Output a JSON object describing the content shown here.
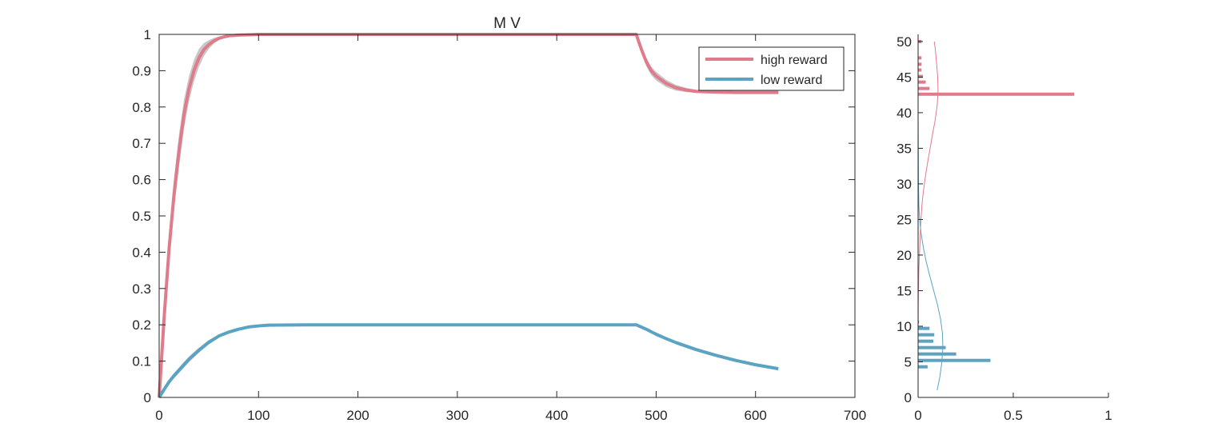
{
  "chart_data": [
    {
      "type": "line",
      "title": "M  V",
      "xlabel": "",
      "ylabel": "",
      "xlim": [
        0,
        700
      ],
      "ylim": [
        0,
        1
      ],
      "xticks": [
        0,
        100,
        200,
        300,
        400,
        500,
        600,
        700
      ],
      "yticks": [
        0,
        0.1,
        0.2,
        0.3,
        0.4,
        0.5,
        0.6,
        0.7,
        0.8,
        0.9,
        1
      ],
      "ytick_labels": [
        "0",
        "0.1",
        "0.2",
        "0.3",
        "0.4",
        "0.5",
        "0.6",
        "0.7",
        "0.8",
        "0.9",
        "1"
      ],
      "grid": false,
      "legend": {
        "placement": "top-right",
        "entries": [
          "high reward",
          "low reward"
        ]
      },
      "series": [
        {
          "name": "high reward",
          "color": "#E07B8B",
          "band_color": "#C8C8C8",
          "x": [
            0,
            5,
            10,
            15,
            20,
            25,
            30,
            35,
            40,
            45,
            50,
            55,
            60,
            65,
            70,
            80,
            90,
            100,
            150,
            200,
            300,
            400,
            480,
            485,
            490,
            495,
            500,
            510,
            520,
            530,
            540,
            560,
            580,
            600,
            623
          ],
          "y": [
            0,
            0.22,
            0.41,
            0.56,
            0.68,
            0.78,
            0.85,
            0.9,
            0.935,
            0.958,
            0.972,
            0.982,
            0.989,
            0.993,
            0.996,
            0.998,
            0.999,
            1,
            1,
            1,
            1,
            1,
            1,
            0.96,
            0.925,
            0.9,
            0.885,
            0.865,
            0.853,
            0.847,
            0.843,
            0.841,
            0.84,
            0.84,
            0.84
          ],
          "band_width": [
            0,
            0.03,
            0.04,
            0.045,
            0.045,
            0.04,
            0.035,
            0.03,
            0.025,
            0.018,
            0.012,
            0.008,
            0.005,
            0.003,
            0.002,
            0.001,
            0,
            0,
            0,
            0,
            0,
            0,
            0,
            0.008,
            0.012,
            0.012,
            0.012,
            0.01,
            0.008,
            0.006,
            0.004,
            0.002,
            0.001,
            0,
            0
          ]
        },
        {
          "name": "low reward",
          "color": "#5BA3C2",
          "band_color": "#C8C8C8",
          "x": [
            0,
            5,
            10,
            15,
            20,
            25,
            30,
            40,
            50,
            60,
            70,
            80,
            90,
            100,
            110,
            150,
            200,
            300,
            400,
            480,
            490,
            500,
            510,
            520,
            540,
            560,
            580,
            600,
            623
          ],
          "y": [
            0,
            0.022,
            0.043,
            0.06,
            0.075,
            0.09,
            0.105,
            0.13,
            0.152,
            0.169,
            0.18,
            0.188,
            0.194,
            0.197,
            0.199,
            0.2,
            0.2,
            0.2,
            0.2,
            0.2,
            0.188,
            0.174,
            0.162,
            0.151,
            0.132,
            0.116,
            0.102,
            0.09,
            0.079
          ],
          "band_width": [
            0,
            0.004,
            0.006,
            0.007,
            0.008,
            0.008,
            0.008,
            0.007,
            0.006,
            0.004,
            0.003,
            0.002,
            0.001,
            0.001,
            0,
            0,
            0,
            0,
            0,
            0,
            0.003,
            0.004,
            0.004,
            0.004,
            0.003,
            0.002,
            0.002,
            0.001,
            0.001
          ]
        }
      ]
    },
    {
      "type": "bar",
      "orientation": "horizontal",
      "title": "",
      "xlabel": "",
      "ylabel": "",
      "xlim": [
        0,
        1
      ],
      "ylim": [
        0,
        51
      ],
      "xticks": [
        0,
        0.5,
        1
      ],
      "yticks": [
        0,
        5,
        10,
        15,
        20,
        25,
        30,
        35,
        40,
        45,
        50
      ],
      "grid": false,
      "series": [
        {
          "name": "high reward",
          "color": "#E07B8B",
          "bins": [
            42.6,
            43.4,
            44.3,
            45.1,
            46.0,
            46.8,
            47.7,
            50.0
          ],
          "values": [
            0.82,
            0.06,
            0.04,
            0.025,
            0.018,
            0.018,
            0.018,
            0.018
          ],
          "fit_curve": {
            "y": [
              0,
              10,
              14,
              18,
              20,
              22,
              24,
              25,
              27,
              29,
              31,
              33,
              35,
              37,
              39,
              41,
              43,
              45,
              47,
              49,
              50
            ],
            "x": [
              0,
              0,
              0.001,
              0.004,
              0.007,
              0.01,
              0.013,
              0.015,
              0.02,
              0.028,
              0.038,
              0.05,
              0.063,
              0.076,
              0.09,
              0.1,
              0.105,
              0.103,
              0.097,
              0.09,
              0.085
            ]
          }
        },
        {
          "name": "low reward",
          "color": "#5BA3C2",
          "bins": [
            4.3,
            5.2,
            6.1,
            7.0,
            7.9,
            8.8,
            9.7,
            10.6
          ],
          "values": [
            0.05,
            0.38,
            0.2,
            0.145,
            0.08,
            0.085,
            0.06,
            0.005
          ],
          "fit_curve": {
            "y": [
              1,
              3,
              5,
              7,
              9,
              11,
              13,
              15,
              17,
              19,
              21,
              23,
              25,
              27,
              30,
              35,
              40,
              43
            ],
            "x": [
              0.1,
              0.115,
              0.125,
              0.13,
              0.128,
              0.118,
              0.102,
              0.082,
              0.062,
              0.043,
              0.028,
              0.016,
              0.008,
              0.004,
              0.002,
              0.001,
              0,
              0
            ]
          }
        }
      ]
    }
  ]
}
